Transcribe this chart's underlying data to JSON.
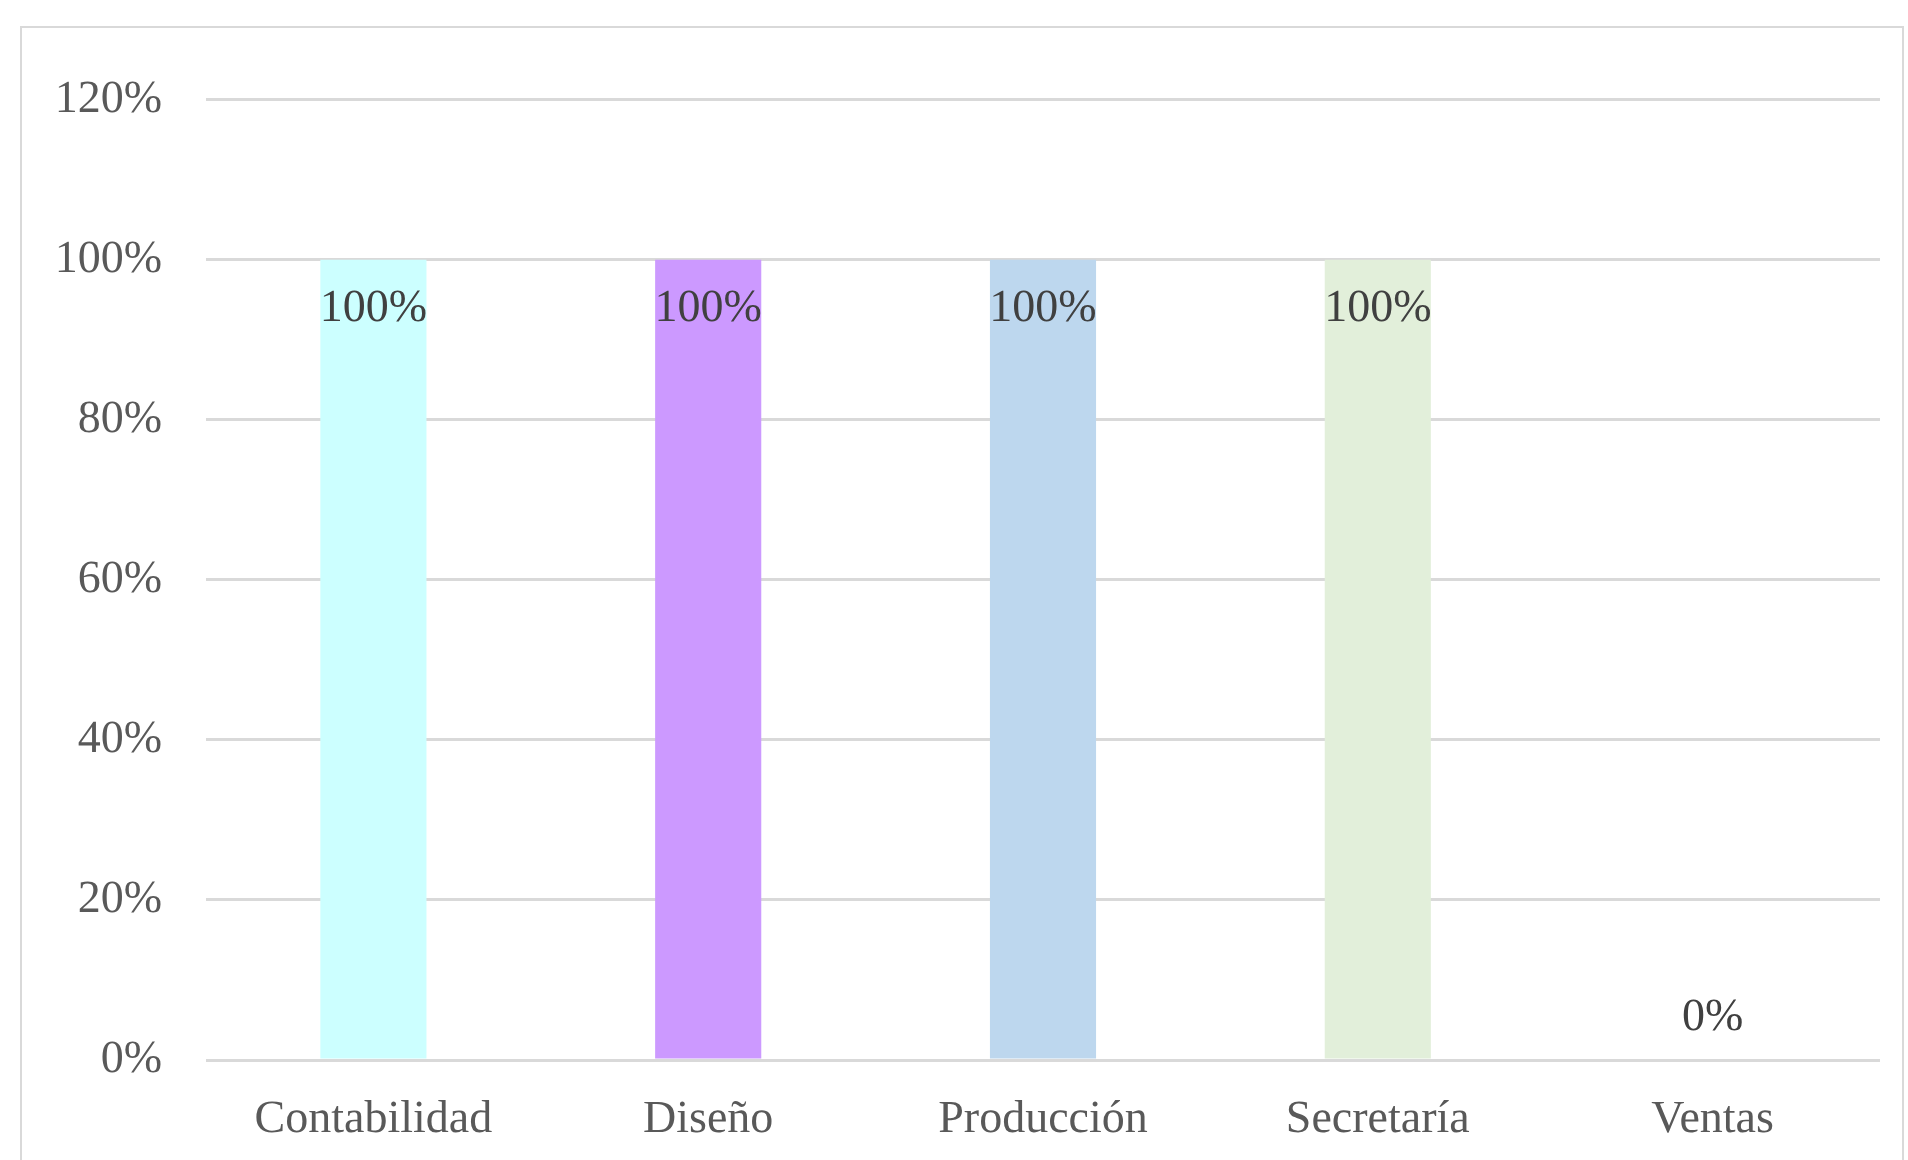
{
  "chart_data": {
    "type": "bar",
    "categories": [
      "Contabilidad",
      "Diseño",
      "Producción",
      "Secretaría",
      "Ventas"
    ],
    "values": [
      100,
      100,
      100,
      100,
      0
    ],
    "colors": [
      "#ccffff",
      "#cc99ff",
      "#bdd7ee",
      "#e2efda",
      "#fce4d6"
    ],
    "value_labels": [
      "100%",
      "100%",
      "100%",
      "100%",
      "0%"
    ],
    "ylim": [
      0,
      120
    ],
    "yticks": [
      {
        "value": 0,
        "label": "0%"
      },
      {
        "value": 20,
        "label": "20%"
      },
      {
        "value": 40,
        "label": "40%"
      },
      {
        "value": 60,
        "label": "60%"
      },
      {
        "value": 80,
        "label": "80%"
      },
      {
        "value": 100,
        "label": "100%"
      },
      {
        "value": 120,
        "label": "120%"
      }
    ],
    "grid": "y"
  }
}
